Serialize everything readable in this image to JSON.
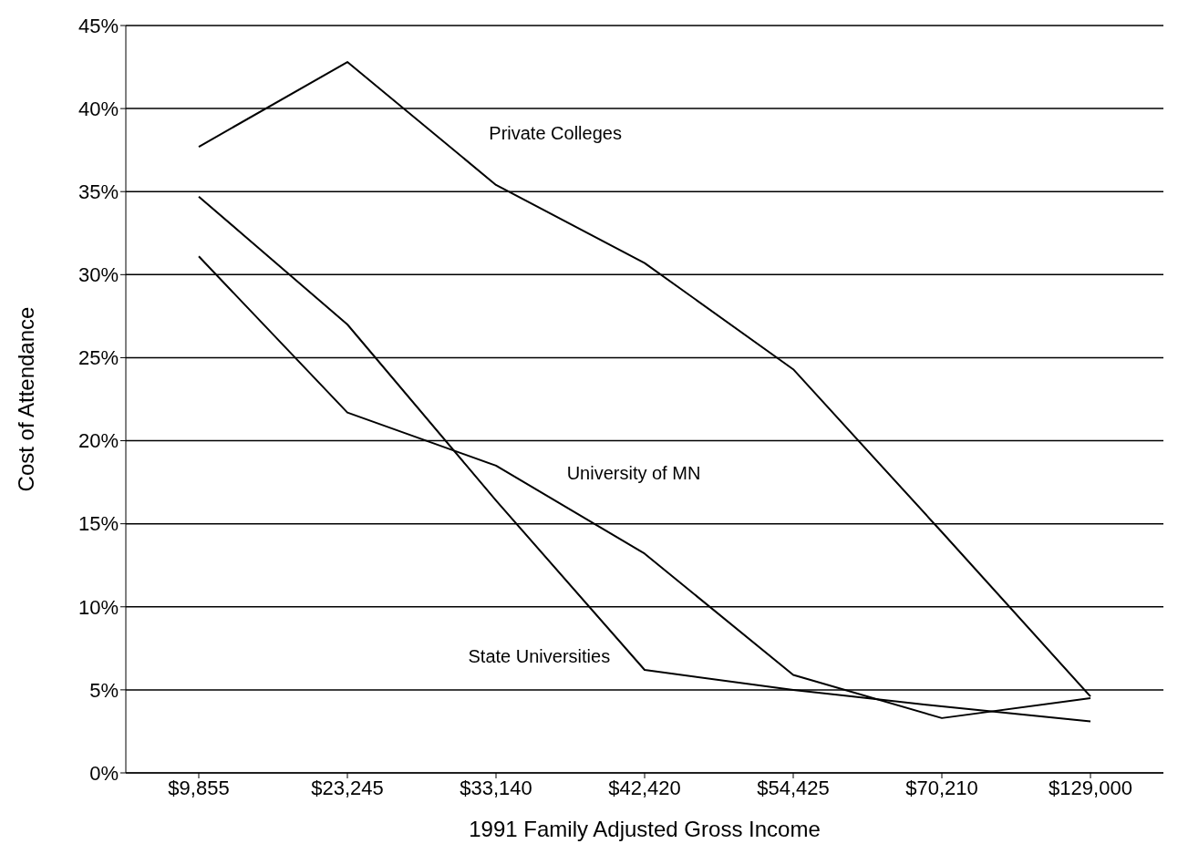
{
  "chart_data": {
    "type": "line",
    "xlabel": "1991 Family Adjusted Gross Income",
    "ylabel": "Cost of Attendance",
    "categories": [
      "$9,855",
      "$23,245",
      "$33,140",
      "$42,420",
      "$54,425",
      "$70,210",
      "$129,000"
    ],
    "series": [
      {
        "name": "Private Colleges",
        "color": "#000000",
        "values": [
          37.7,
          42.8,
          35.4,
          30.7,
          24.3,
          14.5,
          4.6
        ]
      },
      {
        "name": "University of MN",
        "color": "#000000",
        "values": [
          31.1,
          21.7,
          18.5,
          13.2,
          5.9,
          3.3,
          4.5
        ]
      },
      {
        "name": "State Universities",
        "color": "#000000",
        "values": [
          34.7,
          27.0,
          16.4,
          6.2,
          5.0,
          4.0,
          3.1
        ]
      }
    ],
    "ylim": [
      0,
      45
    ],
    "yticks": [
      {
        "value": 0,
        "label": "0%"
      },
      {
        "value": 5,
        "label": "5%"
      },
      {
        "value": 10,
        "label": "10%"
      },
      {
        "value": 15,
        "label": "15%"
      },
      {
        "value": 20,
        "label": "20%"
      },
      {
        "value": 25,
        "label": "25%"
      },
      {
        "value": 30,
        "label": "30%"
      },
      {
        "value": 35,
        "label": "35%"
      },
      {
        "value": 40,
        "label": "40%"
      },
      {
        "value": 45,
        "label": "45%"
      }
    ],
    "grid": "y",
    "legend": false,
    "marker": "none",
    "line_style": "solid"
  }
}
